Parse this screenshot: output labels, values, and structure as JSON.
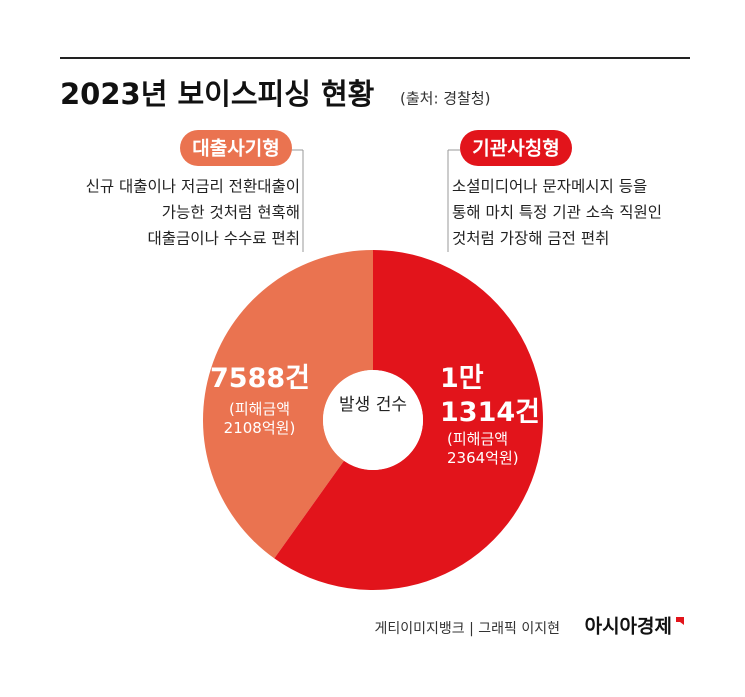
{
  "chart_data": {
    "type": "pie",
    "title": "2023년 보이스피싱 현황",
    "source": "(출처: 경찰청)",
    "center_label": "발생 건수",
    "categories": [
      "대출사기형",
      "기관사칭형"
    ],
    "values": [
      7588,
      11314
    ],
    "value_labels": [
      "7588건",
      "1만 1314건"
    ],
    "colors": [
      "#ea7350",
      "#e2141b"
    ],
    "damage_labels": [
      "(피해금액 2108억원)",
      "(피해금액 2364억원)"
    ],
    "descriptions": [
      [
        "신규 대출이나 저금리 전환대출이",
        "가능한 것처럼 현혹해",
        "대출금이나 수수료 편취"
      ],
      [
        "소셜미디어나 문자메시지 등을",
        "통해 마치 특정 기관 소속 직원인",
        "것처럼 가장해 금전 편취"
      ]
    ],
    "credit": "게티이미지뱅크 | 그래픽 이지현",
    "logo": "아시아경제"
  }
}
